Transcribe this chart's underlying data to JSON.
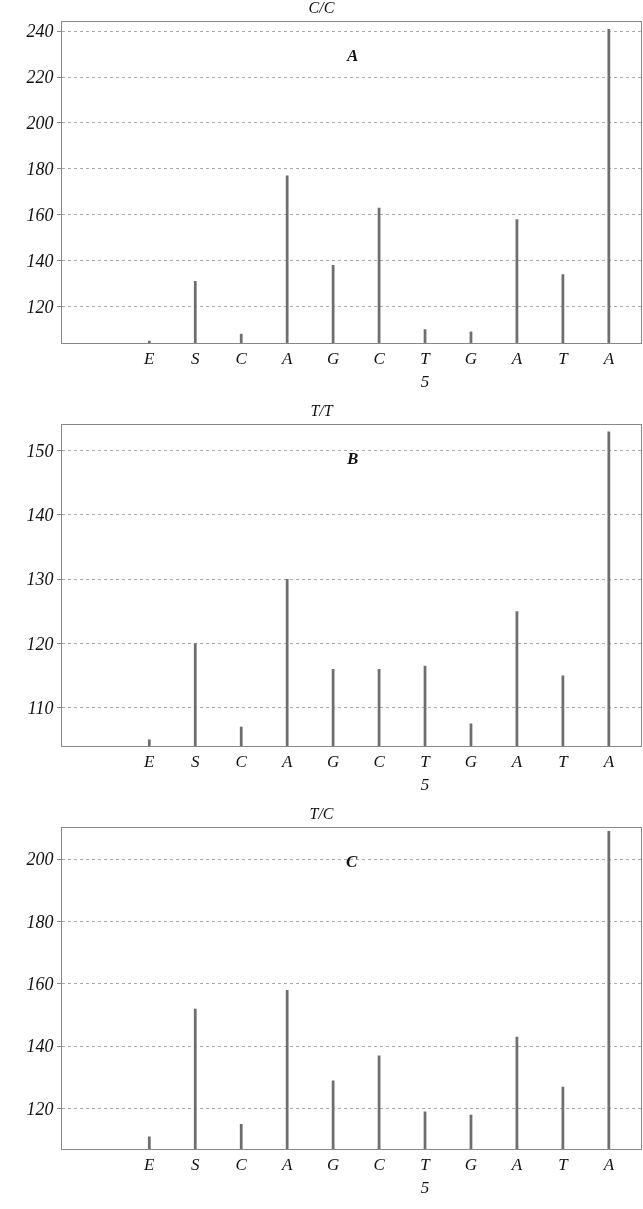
{
  "chart_data": [
    {
      "type": "bar",
      "title": "C/C",
      "subtitle": "A",
      "categories": [
        "E",
        "S",
        "C",
        "A",
        "G",
        "C",
        "T\n5",
        "G",
        "A",
        "T",
        "A"
      ],
      "values": [
        105,
        131,
        108,
        177,
        138,
        163,
        110,
        109,
        158,
        134,
        241
      ],
      "color": "#6e6e6e",
      "ylim": [
        104,
        244
      ],
      "yticks": [
        120,
        140,
        160,
        180,
        200,
        220,
        240
      ],
      "grid": "y"
    },
    {
      "type": "bar",
      "title": "T/T",
      "subtitle": "B",
      "categories": [
        "E",
        "S",
        "C",
        "A",
        "G",
        "C",
        "T\n5",
        "G",
        "A",
        "T",
        "A"
      ],
      "values": [
        105,
        120,
        107,
        130,
        116,
        116,
        116.5,
        107.5,
        125,
        115,
        153
      ],
      "color": "#6e6e6e",
      "ylim": [
        104,
        154
      ],
      "yticks": [
        110,
        120,
        130,
        140,
        150
      ],
      "grid": "y"
    },
    {
      "type": "bar",
      "title": "T/C",
      "subtitle": "C",
      "categories": [
        "E",
        "S",
        "C",
        "A",
        "G",
        "C",
        "T\n5",
        "G",
        "A",
        "T",
        "A"
      ],
      "values": [
        111,
        152,
        115,
        158,
        129,
        137,
        119,
        118,
        143,
        127,
        209
      ],
      "color": "#6e6e6e",
      "ylim": [
        107,
        210
      ],
      "yticks": [
        120,
        140,
        160,
        180,
        200
      ],
      "grid": "y"
    }
  ]
}
